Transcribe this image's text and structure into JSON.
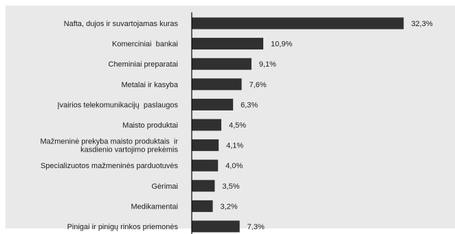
{
  "chart_data": {
    "type": "bar",
    "orientation": "horizontal",
    "categories": [
      [
        "Nafta, dujos ir suvartojamas kuras"
      ],
      [
        "Komerciniai  bankai"
      ],
      [
        "Cheminiai preparatai"
      ],
      [
        "Metalai ir kasyba"
      ],
      [
        "Įvairios telekomunikacijų  paslaugos"
      ],
      [
        "Maisto produktai"
      ],
      [
        "Mažmeninė prekyba maisto produktais  ir",
        "kasdienio vartojimo prekėmis"
      ],
      [
        "Specializuotos mažmeninės parduotuvės"
      ],
      [
        "Gėrimai"
      ],
      [
        "Medikamentai"
      ],
      [
        "Pinigai ir pinigų rinkos priemonės"
      ]
    ],
    "values": [
      32.3,
      10.9,
      9.1,
      7.6,
      6.3,
      4.5,
      4.1,
      4.0,
      3.5,
      3.2,
      7.3
    ],
    "value_labels": [
      "32,3%",
      "10,9%",
      "9,1%",
      "7,6%",
      "6,3%",
      "4,5%",
      "4,1%",
      "4,0%",
      "3,5%",
      "3,2%",
      "7,3%"
    ],
    "xlim": [
      0,
      33
    ],
    "grid": false,
    "colors": {
      "background": "#e9e9e9",
      "bar": "#303030",
      "axis": "#000000"
    }
  }
}
